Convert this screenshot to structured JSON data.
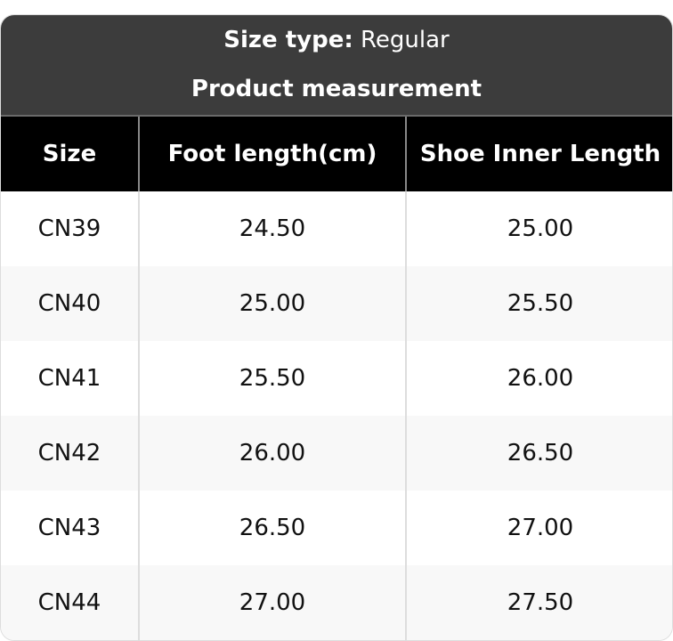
{
  "header": {
    "size_type_label": "Size type:",
    "size_type_value": "Regular",
    "subtitle": "Product measurement"
  },
  "table": {
    "columns": [
      "Size",
      "Foot length(cm)",
      "Shoe Inner Length"
    ],
    "rows": [
      [
        "CN39",
        "24.50",
        "25.00"
      ],
      [
        "CN40",
        "25.00",
        "25.50"
      ],
      [
        "CN41",
        "25.50",
        "26.00"
      ],
      [
        "CN42",
        "26.00",
        "26.50"
      ],
      [
        "CN43",
        "26.50",
        "27.00"
      ],
      [
        "CN44",
        "27.00",
        "27.50"
      ]
    ]
  }
}
